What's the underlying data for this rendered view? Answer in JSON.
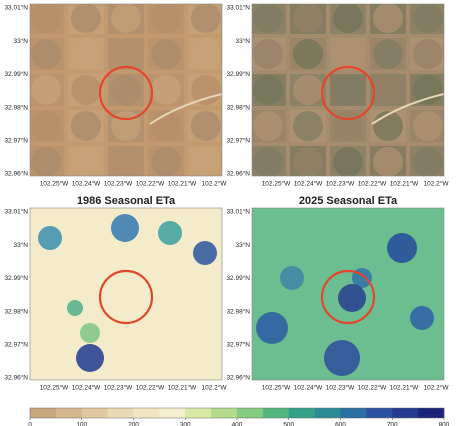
{
  "titles": [
    "1986 Seasonal ETa",
    "2025 Seasonal ETa"
  ],
  "lat_labels": [
    "33.01°N",
    "33°N",
    "32.99°N",
    "32.98°N",
    "32.97°N",
    "32.96°N"
  ],
  "lon_labels": [
    "102.25°W",
    "102.24°W",
    "102.23°W",
    "102.22°W",
    "102.21°W",
    "102.2°W"
  ],
  "colorbar": {
    "ticks": [
      0,
      100,
      200,
      300,
      400,
      500,
      600,
      700,
      800
    ],
    "colors": [
      "#c9a77c",
      "#d5b78f",
      "#e0c9a2",
      "#ead9b5",
      "#f2e6c4",
      "#f6efcd",
      "#d9eaa6",
      "#b2dc8c",
      "#84cc80",
      "#56b67f",
      "#35a08a",
      "#2a8b95",
      "#2a6fa3",
      "#2b52a0",
      "#263a8f",
      "#1c237a"
    ]
  }
}
